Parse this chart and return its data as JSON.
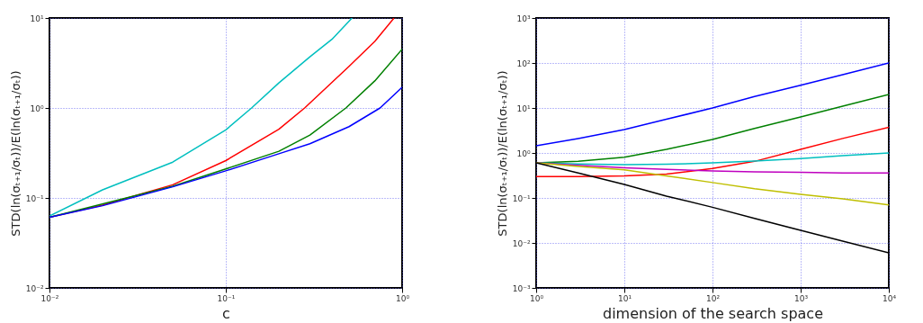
{
  "chart_data": [
    {
      "type": "line",
      "xlabel": "c",
      "ylabel": "STD(ln(σₜ₊₁/σₜ))/E(ln(σₜ₊₁/σₜ))",
      "log": "xy",
      "grid": true,
      "legend": false,
      "marker": "none",
      "line_style": "solid",
      "xlim": [
        0.01,
        1
      ],
      "ylim": [
        0.01,
        10
      ],
      "xticks": [
        {
          "value": 0.01,
          "label": "10⁻²"
        },
        {
          "value": 0.1,
          "label": "10⁻¹"
        },
        {
          "value": 1,
          "label": "10⁰"
        }
      ],
      "yticks": [
        {
          "value": 0.01,
          "label": "10⁻²"
        },
        {
          "value": 0.1,
          "label": "10⁻¹"
        },
        {
          "value": 1,
          "label": "10⁰"
        },
        {
          "value": 10,
          "label": "10¹"
        }
      ],
      "series": [
        {
          "color": "#00bfbf",
          "x": [
            0.01,
            0.02,
            0.05,
            0.1,
            0.14,
            0.2,
            0.3,
            0.4,
            0.52
          ],
          "values": [
            0.063,
            0.123,
            0.25,
            0.57,
            1.0,
            1.9,
            3.7,
            5.8,
            10
          ]
        },
        {
          "color": "#ff0000",
          "x": [
            0.01,
            0.02,
            0.05,
            0.1,
            0.2,
            0.28,
            0.5,
            0.7,
            0.9
          ],
          "values": [
            0.061,
            0.083,
            0.14,
            0.26,
            0.58,
            1.0,
            2.9,
            5.5,
            10
          ]
        },
        {
          "color": "#008000",
          "x": [
            0.01,
            0.05,
            0.1,
            0.2,
            0.3,
            0.48,
            0.7,
            1.0
          ],
          "values": [
            0.061,
            0.135,
            0.21,
            0.33,
            0.5,
            1.0,
            2.0,
            4.5
          ]
        },
        {
          "color": "#0000ff",
          "x": [
            0.01,
            0.02,
            0.05,
            0.1,
            0.2,
            0.3,
            0.5,
            0.75,
            1.0
          ],
          "values": [
            0.061,
            0.082,
            0.133,
            0.2,
            0.31,
            0.4,
            0.62,
            1.0,
            1.7
          ]
        }
      ]
    },
    {
      "type": "line",
      "xlabel": "dimension of the search space",
      "ylabel": "STD(ln(σₜ₊₁/σₜ))/E(ln(σₜ₊₁/σₜ))",
      "log": "xy",
      "grid": true,
      "legend": false,
      "marker": "none",
      "line_style": "solid",
      "xlim": [
        1,
        10000
      ],
      "ylim": [
        0.001,
        1000
      ],
      "xticks": [
        {
          "value": 1,
          "label": "10⁰"
        },
        {
          "value": 10,
          "label": "10¹"
        },
        {
          "value": 100,
          "label": "10²"
        },
        {
          "value": 1000,
          "label": "10³"
        },
        {
          "value": 10000,
          "label": "10⁴"
        }
      ],
      "yticks": [
        {
          "value": 0.001,
          "label": "10⁻³"
        },
        {
          "value": 0.01,
          "label": "10⁻²"
        },
        {
          "value": 0.1,
          "label": "10⁻¹"
        },
        {
          "value": 1,
          "label": "10⁰"
        },
        {
          "value": 10,
          "label": "10¹"
        },
        {
          "value": 100,
          "label": "10²"
        },
        {
          "value": 1000,
          "label": "10³"
        }
      ],
      "x": [
        1,
        3,
        10,
        30,
        100,
        300,
        1000,
        3000,
        10000
      ],
      "series": [
        {
          "color": "#0000ff",
          "values": [
            1.45,
            2.1,
            3.3,
            5.6,
            10,
            18,
            32,
            55,
            100
          ]
        },
        {
          "color": "#008000",
          "values": [
            0.6,
            0.65,
            0.8,
            1.2,
            2.0,
            3.5,
            6.3,
            11,
            20
          ]
        },
        {
          "color": "#ff0000",
          "values": [
            0.3,
            0.3,
            0.31,
            0.34,
            0.45,
            0.65,
            1.2,
            2.1,
            3.7
          ]
        },
        {
          "color": "#00bfbf",
          "values": [
            0.6,
            0.57,
            0.55,
            0.56,
            0.6,
            0.66,
            0.75,
            0.87,
            1.0
          ]
        },
        {
          "color": "#bf00bf",
          "values": [
            0.6,
            0.53,
            0.47,
            0.43,
            0.4,
            0.38,
            0.37,
            0.36,
            0.36
          ]
        },
        {
          "color": "#bfbf00",
          "values": [
            0.6,
            0.5,
            0.42,
            0.31,
            0.22,
            0.16,
            0.12,
            0.095,
            0.07
          ]
        },
        {
          "color": "#000000",
          "values": [
            0.6,
            0.36,
            0.2,
            0.11,
            0.062,
            0.035,
            0.019,
            0.011,
            0.006
          ]
        }
      ]
    }
  ]
}
